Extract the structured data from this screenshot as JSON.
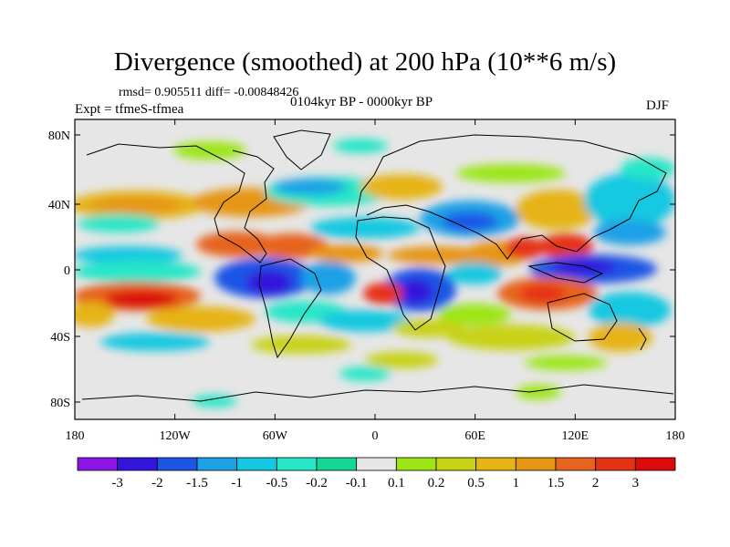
{
  "title": "Divergence (smoothed) at 200 hPa (10**6 m/s)",
  "stats": "rmsd= 0.905511 diff= -0.00848426",
  "experiment": "Expt = tfmeS-tfmea",
  "period": "0104kyr BP - 0000kyr BP",
  "season": "DJF",
  "lat_ticks": [
    "80N",
    "40N",
    "0",
    "40S",
    "80S"
  ],
  "lon_ticks": [
    "180",
    "120W",
    "60W",
    "0",
    "60E",
    "120E",
    "180"
  ],
  "colorbar": {
    "colors": [
      "#8c14e6",
      "#3216dc",
      "#1e55e6",
      "#1ea0e6",
      "#14c8e1",
      "#28e6c8",
      "#14d796",
      "#e6e6e6",
      "#9be614",
      "#c8d214",
      "#e6b414",
      "#e69614",
      "#e6641e",
      "#e63214",
      "#dc0a0a"
    ],
    "labels": [
      "-3",
      "-2",
      "-1.5",
      "-1",
      "-0.5",
      "-0.2",
      "-0.1",
      "0.1",
      "0.2",
      "0.5",
      "1",
      "1.5",
      "2",
      "3"
    ]
  }
}
